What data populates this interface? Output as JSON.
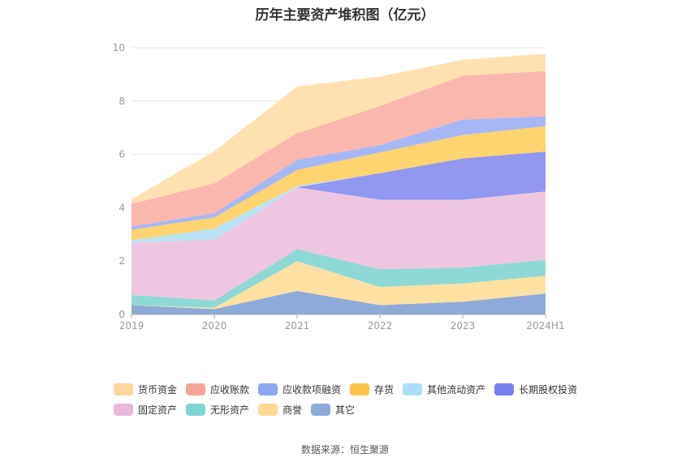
{
  "chart_data": {
    "type": "area",
    "stacked": true,
    "title": "历年主要资产堆积图（亿元）",
    "source": "数据来源：恒生聚源",
    "categories": [
      "2019",
      "2020",
      "2021",
      "2022",
      "2023",
      "2024H1"
    ],
    "ylim": [
      0,
      10
    ],
    "yticks": [
      "0",
      "2",
      "4",
      "6",
      "8",
      "10"
    ],
    "grid": true,
    "legend_position": "bottom",
    "series": [
      {
        "name": "其它",
        "color": "#8EAAD8",
        "values": [
          0.35,
          0.2,
          0.88,
          0.35,
          0.48,
          0.78
        ]
      },
      {
        "name": "商誉",
        "color": "#FFE0A3",
        "values": [
          0.0,
          0.05,
          1.12,
          0.68,
          0.68,
          0.67
        ]
      },
      {
        "name": "无形资产",
        "color": "#8ED9D6",
        "values": [
          0.38,
          0.28,
          0.45,
          0.67,
          0.6,
          0.6
        ]
      },
      {
        "name": "固定资产",
        "color": "#EFC6E1",
        "values": [
          1.97,
          2.27,
          2.32,
          2.6,
          2.54,
          2.56
        ]
      },
      {
        "name": "长期股权投资",
        "color": "#9098F0",
        "values": [
          0.0,
          0.0,
          0.0,
          1.0,
          1.55,
          1.5
        ]
      },
      {
        "name": "其他流动资产",
        "color": "#B9E3F5",
        "values": [
          0.08,
          0.42,
          0.05,
          0.0,
          0.0,
          0.0
        ]
      },
      {
        "name": "存货",
        "color": "#FFD370",
        "values": [
          0.4,
          0.42,
          0.6,
          0.78,
          0.88,
          0.95
        ]
      },
      {
        "name": "应收款项融资",
        "color": "#A5B7F7",
        "values": [
          0.12,
          0.16,
          0.38,
          0.27,
          0.58,
          0.37
        ]
      },
      {
        "name": "应收账款",
        "color": "#FAB7AE",
        "values": [
          0.85,
          1.12,
          1.0,
          1.47,
          1.64,
          1.7
        ]
      },
      {
        "name": "货币资金",
        "color": "#FFE0B0",
        "values": [
          0.17,
          1.2,
          1.75,
          1.1,
          0.6,
          0.65
        ]
      }
    ]
  },
  "legend": [
    {
      "name": "货币资金",
      "color": "#FFD79E"
    },
    {
      "name": "应收账款",
      "color": "#F8A39A"
    },
    {
      "name": "应收款项融资",
      "color": "#8FA6F5"
    },
    {
      "name": "存货",
      "color": "#FDC44B"
    },
    {
      "name": "其他流动资产",
      "color": "#A9DEF6"
    },
    {
      "name": "长期股权投资",
      "color": "#7A7FEF"
    },
    {
      "name": "固定资产",
      "color": "#E9B8DB"
    },
    {
      "name": "无形资产",
      "color": "#7ED5D1"
    },
    {
      "name": "商誉",
      "color": "#FFDA93"
    },
    {
      "name": "其它",
      "color": "#8EAAD8"
    }
  ]
}
